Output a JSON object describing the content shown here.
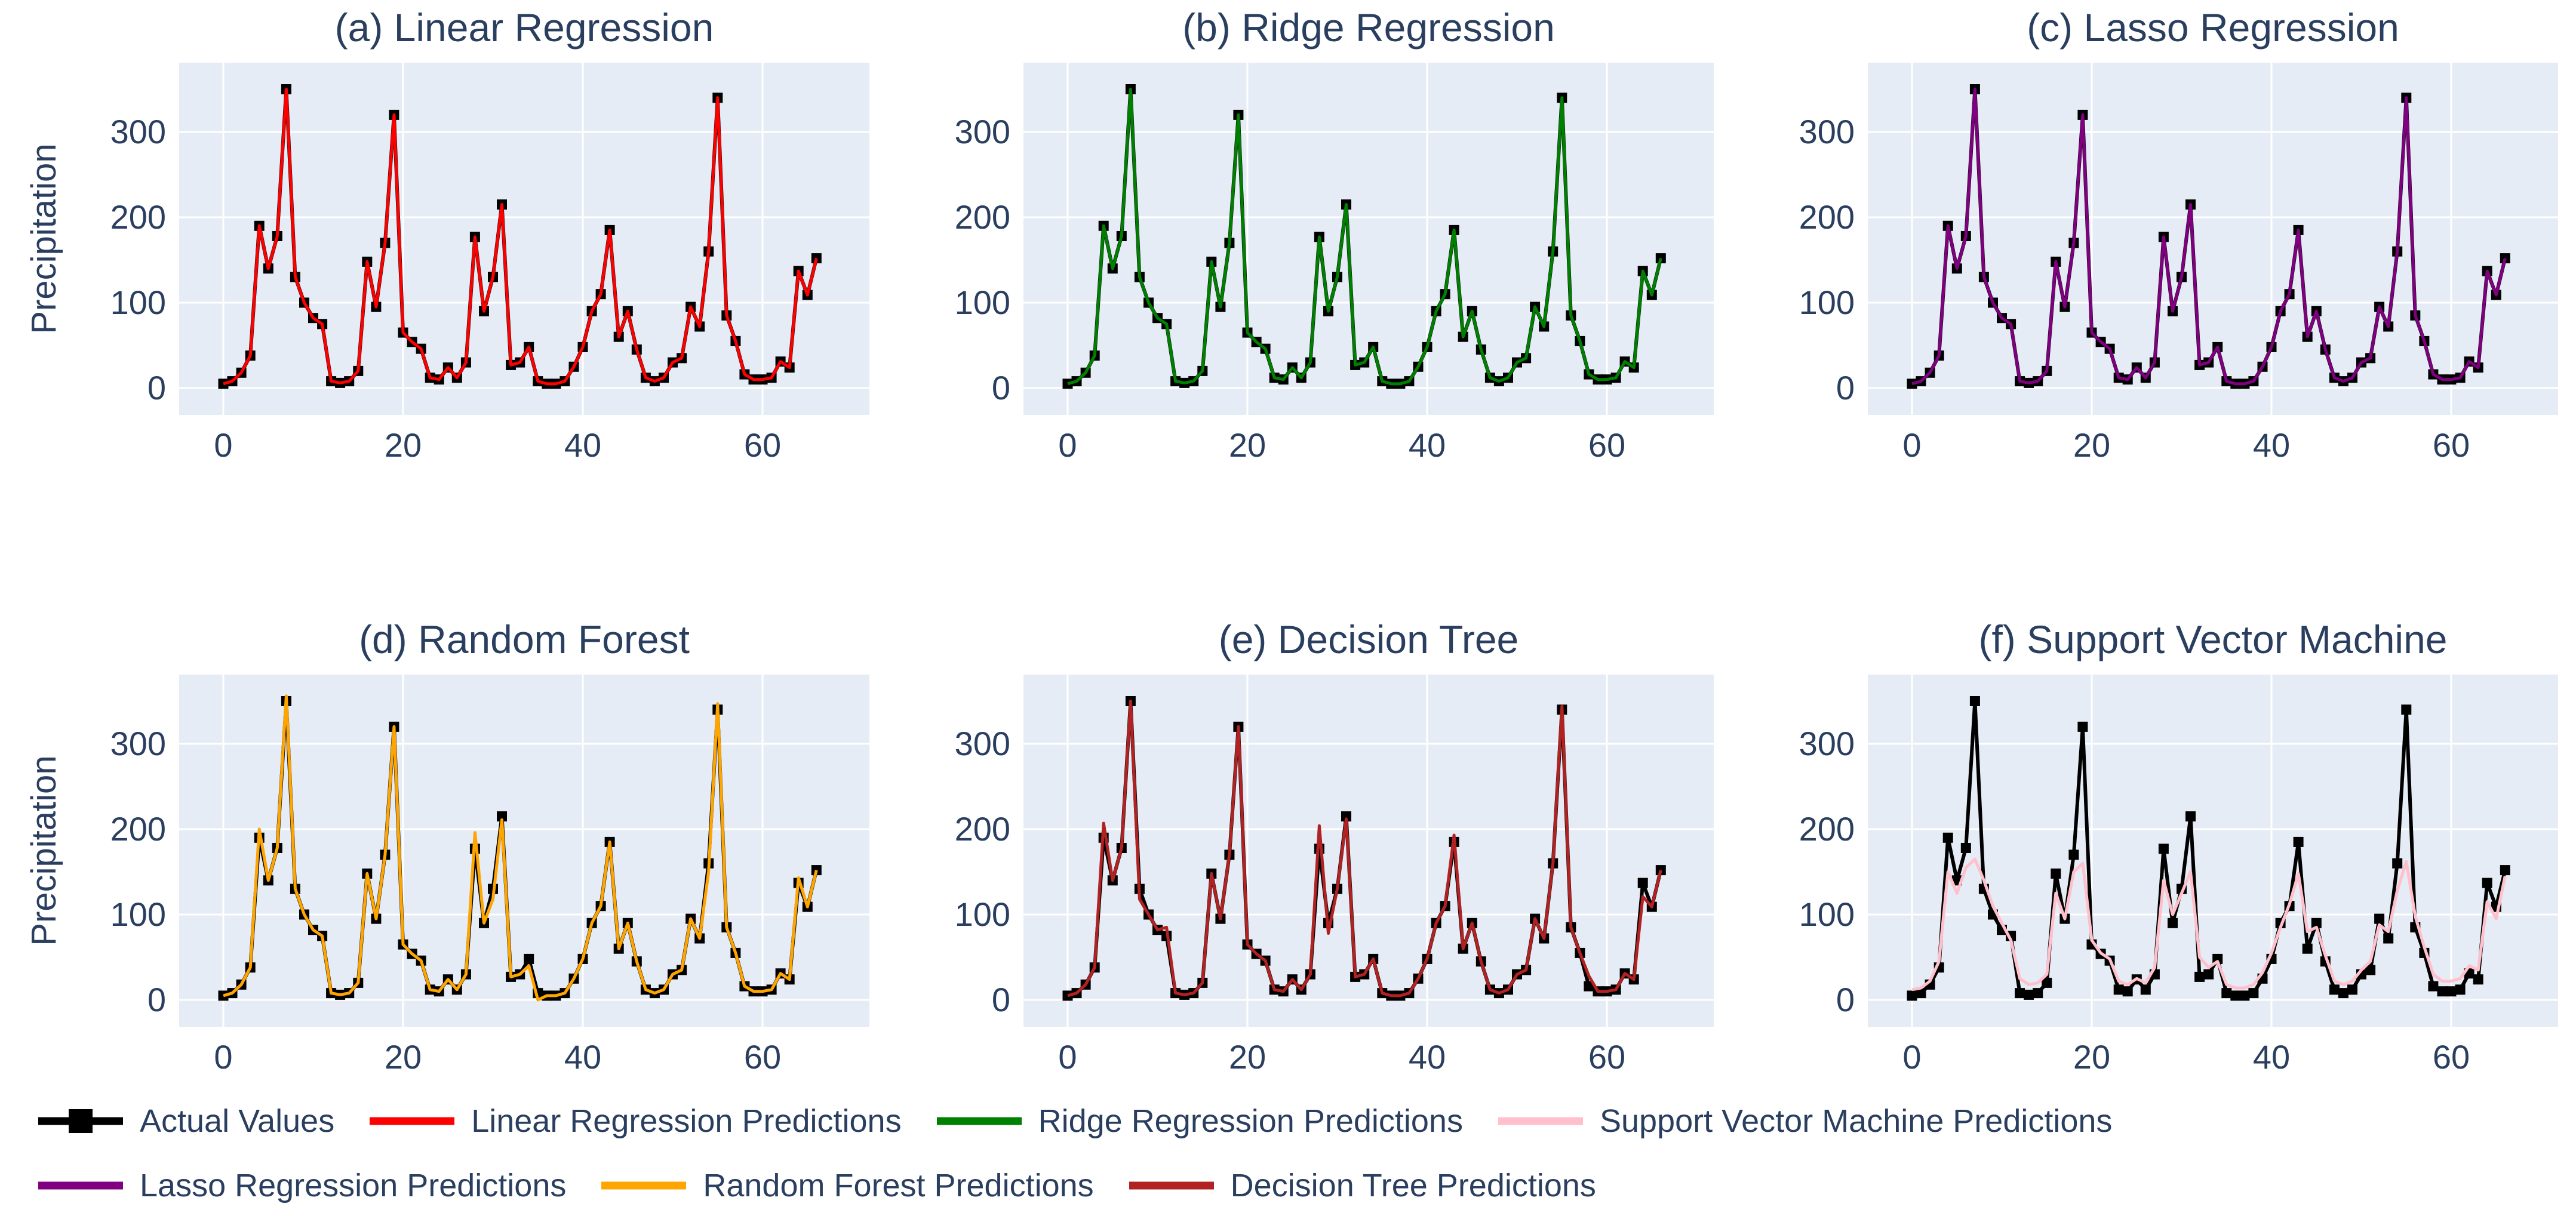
{
  "colors": {
    "background": "#ffffff",
    "plot_background": "#e5ecf6",
    "gridline": "#ffffff",
    "text": "#2a3f5f",
    "actual": "#000000",
    "linear": "#ff0000",
    "ridge": "#008000",
    "lasso": "#800080",
    "random_forest": "#ffa500",
    "decision_tree": "#b22222",
    "svm": "#ffc0cb"
  },
  "legend": {
    "row1": [
      {
        "label": "Actual Values",
        "color": "#000000",
        "glyph": "line-square"
      },
      {
        "label": "Linear Regression Predictions",
        "color": "#ff0000",
        "glyph": "line"
      },
      {
        "label": "Ridge Regression Predictions",
        "color": "#008000",
        "glyph": "line"
      },
      {
        "label": "Support Vector Machine Predictions",
        "color": "#ffc0cb",
        "glyph": "line"
      }
    ],
    "row2": [
      {
        "label": "Lasso Regression Predictions",
        "color": "#800080",
        "glyph": "line"
      },
      {
        "label": "Random Forest Predictions",
        "color": "#ffa500",
        "glyph": "line"
      },
      {
        "label": "Decision Tree Predictions",
        "color": "#b22222",
        "glyph": "line"
      }
    ]
  },
  "chart_data": {
    "type": "line",
    "ylabel": "Precipitation",
    "x_ticks": [
      0,
      20,
      40,
      60
    ],
    "y_ticks": [
      0,
      100,
      200,
      300
    ],
    "x_range": [
      -5,
      71
    ],
    "y_range": [
      -31,
      381
    ],
    "grid": true,
    "legend_position": "bottom",
    "x": [
      0,
      1,
      2,
      3,
      4,
      5,
      6,
      7,
      8,
      9,
      10,
      11,
      12,
      13,
      14,
      15,
      16,
      17,
      18,
      19,
      20,
      21,
      22,
      23,
      24,
      25,
      26,
      27,
      28,
      29,
      30,
      31,
      32,
      33,
      34,
      35,
      36,
      37,
      38,
      39,
      40,
      41,
      42,
      43,
      44,
      45,
      46,
      47,
      48,
      49,
      50,
      51,
      52,
      53,
      54,
      55,
      56,
      57,
      58,
      59,
      60,
      61,
      62,
      63,
      64,
      65,
      66
    ],
    "series": {
      "actual": [
        5,
        8,
        18,
        38,
        190,
        140,
        178,
        350,
        130,
        100,
        82,
        75,
        8,
        6,
        8,
        20,
        148,
        95,
        170,
        320,
        65,
        54,
        46,
        12,
        10,
        24,
        12,
        30,
        177,
        90,
        130,
        215,
        27,
        30,
        48,
        8,
        5,
        5,
        8,
        25,
        48,
        90,
        110,
        185,
        60,
        90,
        45,
        12,
        8,
        12,
        30,
        35,
        95,
        72,
        160,
        340,
        85,
        55,
        16,
        10,
        10,
        12,
        31,
        24,
        137,
        109,
        152
      ],
      "linear": [
        5,
        8,
        18,
        38,
        190,
        140,
        178,
        350,
        130,
        100,
        82,
        75,
        8,
        6,
        8,
        20,
        148,
        95,
        170,
        320,
        65,
        54,
        46,
        12,
        10,
        24,
        12,
        30,
        177,
        90,
        130,
        215,
        27,
        30,
        48,
        8,
        5,
        5,
        8,
        25,
        48,
        90,
        110,
        185,
        60,
        90,
        45,
        12,
        8,
        12,
        30,
        35,
        95,
        72,
        160,
        340,
        85,
        55,
        16,
        10,
        10,
        12,
        31,
        24,
        137,
        109,
        152
      ],
      "ridge": [
        5,
        8,
        18,
        38,
        190,
        140,
        178,
        350,
        130,
        100,
        82,
        75,
        8,
        6,
        8,
        20,
        148,
        95,
        170,
        320,
        65,
        54,
        46,
        12,
        10,
        24,
        12,
        30,
        177,
        90,
        130,
        215,
        27,
        30,
        48,
        8,
        5,
        5,
        8,
        25,
        48,
        90,
        110,
        185,
        60,
        90,
        45,
        12,
        8,
        12,
        30,
        35,
        95,
        72,
        160,
        340,
        85,
        55,
        16,
        10,
        10,
        12,
        31,
        24,
        137,
        109,
        152
      ],
      "lasso": [
        5,
        8,
        18,
        38,
        190,
        140,
        178,
        350,
        130,
        100,
        82,
        75,
        8,
        6,
        8,
        20,
        148,
        95,
        170,
        320,
        65,
        54,
        46,
        12,
        10,
        24,
        12,
        30,
        177,
        90,
        130,
        215,
        27,
        30,
        48,
        8,
        5,
        5,
        8,
        25,
        48,
        90,
        110,
        185,
        60,
        90,
        45,
        12,
        8,
        12,
        30,
        35,
        95,
        72,
        160,
        340,
        85,
        55,
        16,
        10,
        10,
        12,
        31,
        24,
        137,
        109,
        152
      ],
      "random_forest": [
        5,
        8,
        18,
        38,
        200,
        140,
        178,
        356,
        130,
        100,
        82,
        75,
        8,
        6,
        8,
        20,
        148,
        95,
        170,
        320,
        65,
        54,
        46,
        12,
        10,
        24,
        12,
        30,
        196,
        90,
        118,
        211,
        27,
        30,
        40,
        0,
        5,
        5,
        8,
        25,
        48,
        90,
        110,
        185,
        60,
        90,
        45,
        12,
        8,
        12,
        30,
        35,
        95,
        72,
        150,
        347,
        85,
        55,
        16,
        10,
        10,
        12,
        31,
        24,
        143,
        109,
        152
      ],
      "decision_tree": [
        5,
        8,
        18,
        38,
        207,
        140,
        178,
        350,
        118,
        100,
        82,
        85,
        8,
        6,
        8,
        20,
        148,
        95,
        170,
        320,
        65,
        54,
        46,
        12,
        10,
        24,
        12,
        30,
        204,
        78,
        130,
        212,
        27,
        30,
        48,
        8,
        5,
        5,
        8,
        25,
        48,
        90,
        110,
        193,
        60,
        90,
        45,
        12,
        8,
        12,
        30,
        35,
        95,
        72,
        160,
        344,
        85,
        55,
        28,
        10,
        10,
        12,
        31,
        24,
        121,
        109,
        152
      ],
      "svm": [
        12,
        14,
        22,
        45,
        150,
        125,
        155,
        165,
        140,
        110,
        90,
        70,
        25,
        18,
        20,
        30,
        125,
        95,
        150,
        160,
        70,
        55,
        48,
        22,
        18,
        25,
        20,
        38,
        140,
        100,
        125,
        150,
        50,
        38,
        45,
        18,
        14,
        14,
        18,
        32,
        55,
        85,
        112,
        148,
        80,
        85,
        52,
        22,
        18,
        22,
        35,
        45,
        88,
        80,
        128,
        162,
        98,
        62,
        30,
        22,
        22,
        25,
        40,
        35,
        115,
        95,
        145
      ]
    },
    "panels": [
      {
        "key": "linear",
        "title": "(a) Linear Regression",
        "color": "#ff0000",
        "row": 0,
        "col": 0
      },
      {
        "key": "ridge",
        "title": "(b) Ridge Regression",
        "color": "#008000",
        "row": 0,
        "col": 1
      },
      {
        "key": "lasso",
        "title": "(c) Lasso Regression",
        "color": "#800080",
        "row": 0,
        "col": 2
      },
      {
        "key": "random_forest",
        "title": "(d) Random Forest",
        "color": "#ffa500",
        "row": 1,
        "col": 0
      },
      {
        "key": "decision_tree",
        "title": "(e) Decision Tree",
        "color": "#b22222",
        "row": 1,
        "col": 1
      },
      {
        "key": "svm",
        "title": "(f) Support Vector Machine",
        "color": "#ffc0cb",
        "row": 1,
        "col": 2
      }
    ]
  }
}
